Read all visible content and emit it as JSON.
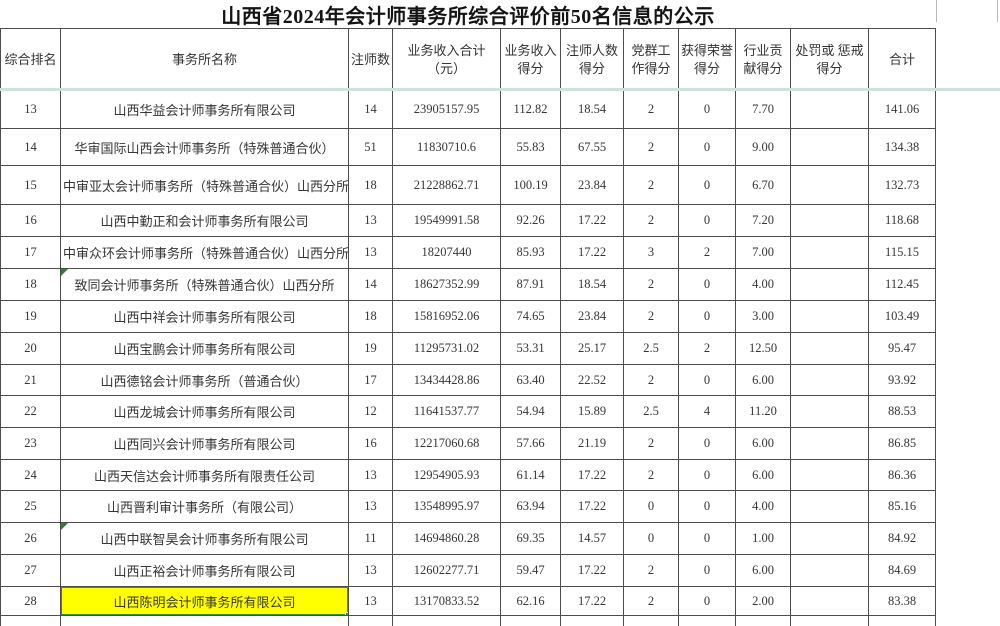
{
  "title": "山西省2024年会计师事务所综合评价前50名信息的公示",
  "table": {
    "columns": [
      {
        "key": "rank",
        "label": "综合排名"
      },
      {
        "key": "name",
        "label": "事务所名称"
      },
      {
        "key": "cpa_count",
        "label": "注师数"
      },
      {
        "key": "revenue",
        "label": "业务收入合计（元）"
      },
      {
        "key": "revenue_score",
        "label": "业务收入得分"
      },
      {
        "key": "cpa_score",
        "label": "注师人数得分"
      },
      {
        "key": "party_score",
        "label": "党群工作得分"
      },
      {
        "key": "honor_score",
        "label": "获得荣誉得分"
      },
      {
        "key": "industry_score",
        "label": "行业贡献得分"
      },
      {
        "key": "penalty_score",
        "label": "处罚或 惩戒 得分"
      },
      {
        "key": "total",
        "label": "合计"
      }
    ],
    "rows": [
      [
        "13",
        "山西华益会计师事务所有限公司",
        "14",
        "23905157.95",
        "112.82",
        "18.54",
        "2",
        "0",
        "7.70",
        "",
        "141.06"
      ],
      [
        "14",
        "华审国际山西会计师事务所（特殊普通合伙）",
        "51",
        "11830710.6",
        "55.83",
        "67.55",
        "2",
        "0",
        "9.00",
        "",
        "134.38"
      ],
      [
        "15",
        "中审亚太会计师事务所（特殊普通合伙）山西分所",
        "18",
        "21228862.71",
        "100.19",
        "23.84",
        "2",
        "0",
        "6.70",
        "",
        "132.73"
      ],
      [
        "16",
        "山西中勤正和会计师事务所有限公司",
        "13",
        "19549991.58",
        "92.26",
        "17.22",
        "2",
        "0",
        "7.20",
        "",
        "118.68"
      ],
      [
        "17",
        "中审众环会计师事务所（特殊普通合伙）山西分所",
        "13",
        "18207440",
        "85.93",
        "17.22",
        "3",
        "2",
        "7.00",
        "",
        "115.15"
      ],
      [
        "18",
        "致同会计师事务所（特殊普通合伙）山西分所",
        "14",
        "18627352.99",
        "87.91",
        "18.54",
        "2",
        "0",
        "4.00",
        "",
        "112.45"
      ],
      [
        "19",
        "山西中祥会计师事务所有限公司",
        "18",
        "15816952.06",
        "74.65",
        "23.84",
        "2",
        "0",
        "3.00",
        "",
        "103.49"
      ],
      [
        "20",
        "山西宝鹏会计师事务所有限公司",
        "19",
        "11295731.02",
        "53.31",
        "25.17",
        "2.5",
        "2",
        "12.50",
        "",
        "95.47"
      ],
      [
        "21",
        "山西德铭会计师事务所（普通合伙）",
        "17",
        "13434428.86",
        "63.40",
        "22.52",
        "2",
        "0",
        "6.00",
        "",
        "93.92"
      ],
      [
        "22",
        "山西龙城会计师事务所有限公司",
        "12",
        "11641537.77",
        "54.94",
        "15.89",
        "2.5",
        "4",
        "11.20",
        "",
        "88.53"
      ],
      [
        "23",
        "山西同兴会计师事务所有限公司",
        "16",
        "12217060.68",
        "57.66",
        "21.19",
        "2",
        "0",
        "6.00",
        "",
        "86.85"
      ],
      [
        "24",
        "山西天信达会计师事务所有限责任公司",
        "13",
        "12954905.93",
        "61.14",
        "17.22",
        "2",
        "0",
        "6.00",
        "",
        "86.36"
      ],
      [
        "25",
        "山西晋利审计事务所（有限公司）",
        "13",
        "13548995.97",
        "63.94",
        "17.22",
        "0",
        "0",
        "4.00",
        "",
        "85.16"
      ],
      [
        "26",
        "山西中联智昊会计师事务所有限公司",
        "11",
        "14694860.28",
        "69.35",
        "14.57",
        "0",
        "0",
        "1.00",
        "",
        "84.92"
      ],
      [
        "27",
        "山西正裕会计师事务所有限公司",
        "13",
        "12602277.71",
        "59.47",
        "17.22",
        "2",
        "0",
        "6.00",
        "",
        "84.69"
      ],
      [
        "28",
        "山西陈明会计师事务所有限公司",
        "13",
        "13170833.52",
        "62.16",
        "17.22",
        "2",
        "0",
        "2.00",
        "",
        "83.38"
      ]
    ],
    "highlight": {
      "row": "28",
      "column": "name"
    },
    "error_marker_rows": [
      "18",
      "26"
    ]
  },
  "colors": {
    "highlight_fill": "#ffff00",
    "selection_border": "#2f8f46",
    "header_divider": "#cbe3dc",
    "grid_line": "#4d4d4d",
    "error_marker": "#2e7d32",
    "text": "#363636"
  }
}
